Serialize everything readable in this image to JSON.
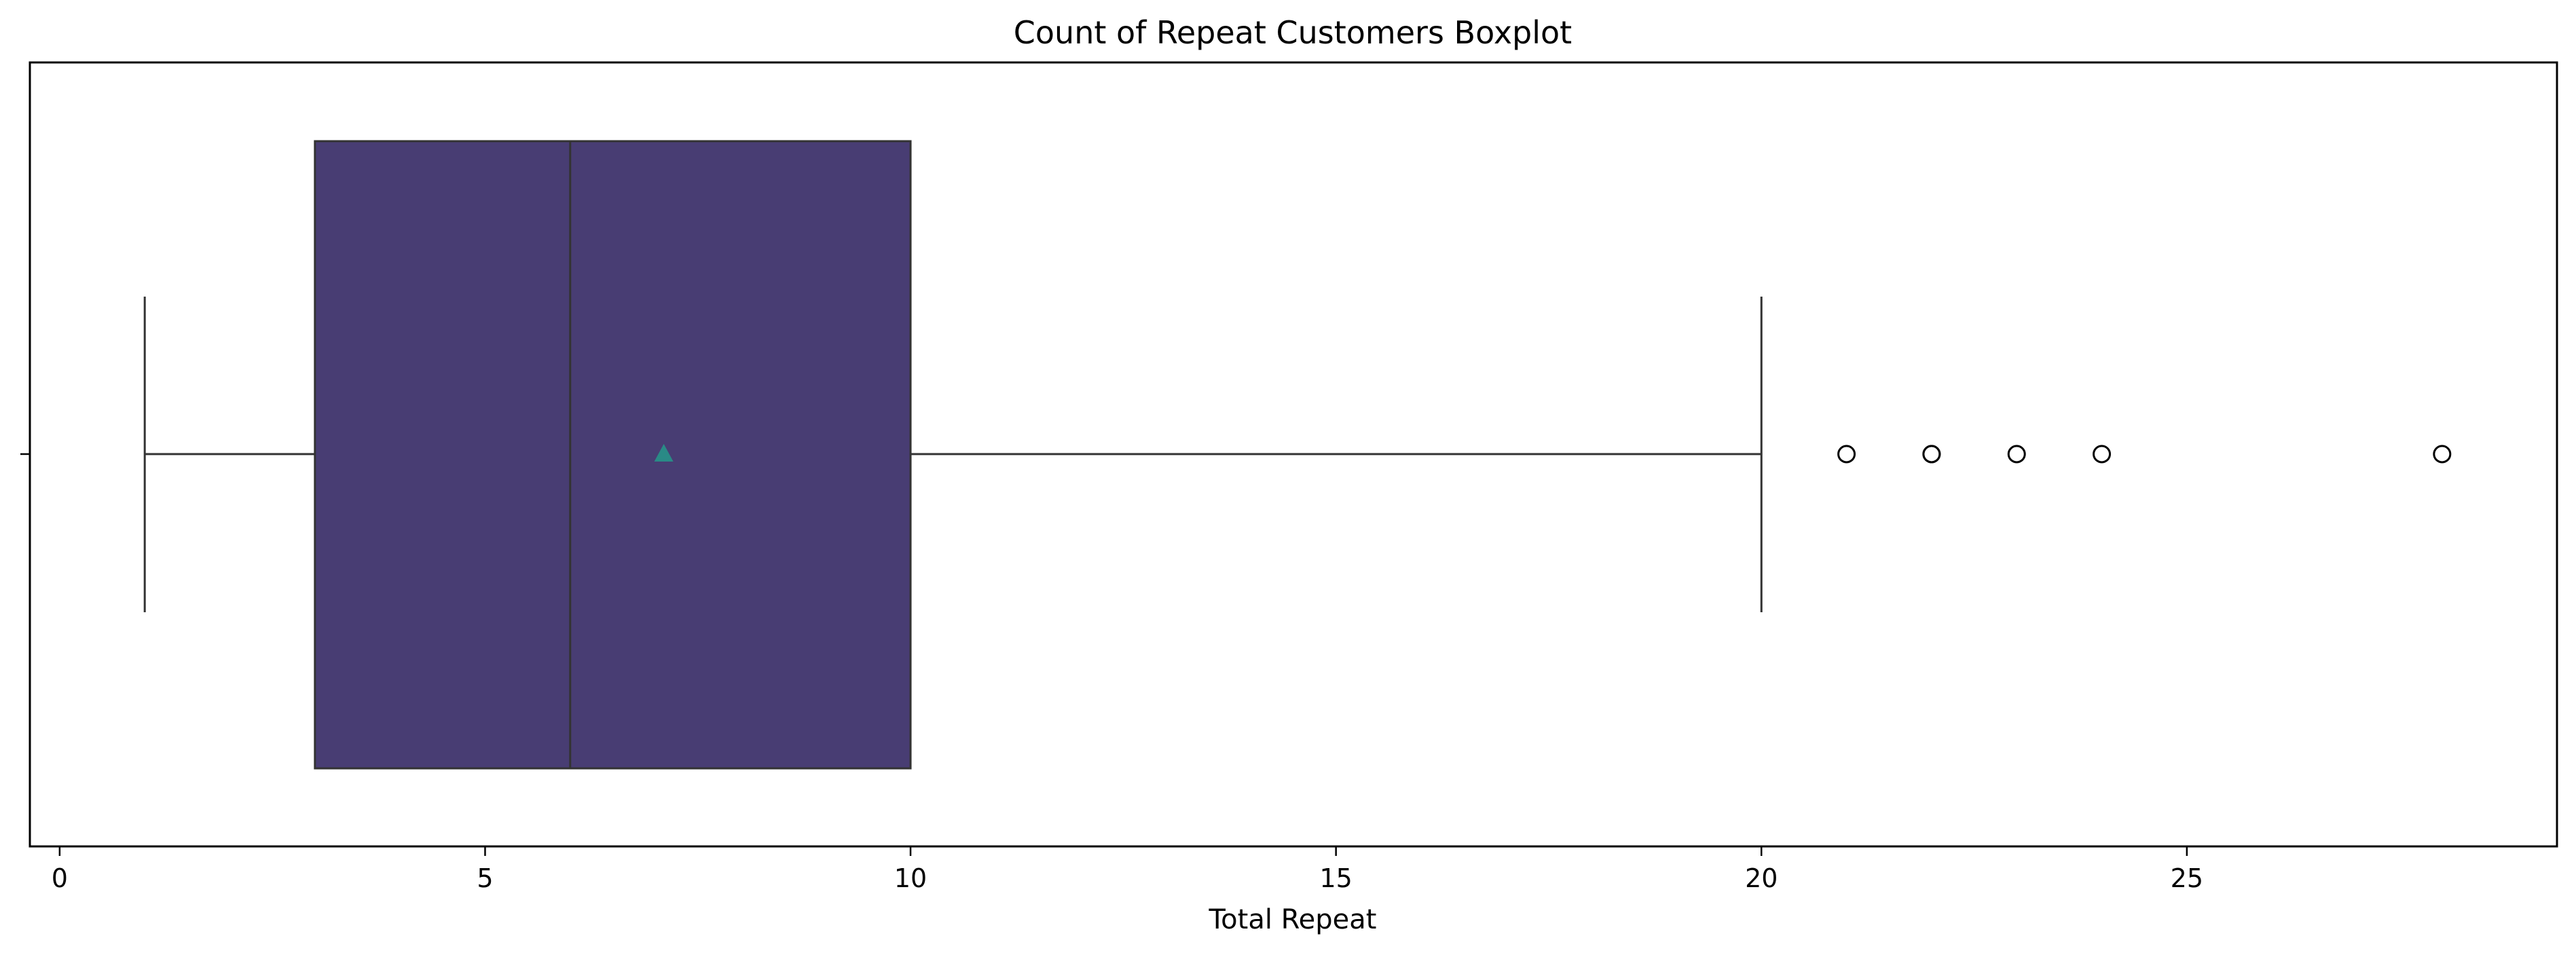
{
  "chart_data": {
    "type": "boxplot",
    "title": "Count of Repeat Customers Boxplot",
    "xlabel": "Total Repeat",
    "ylabel": "",
    "xlim": [
      -0.35,
      29.35
    ],
    "xticks": [
      0,
      5,
      10,
      15,
      20,
      25
    ],
    "grid": false,
    "series": [
      {
        "whisker_low": 1,
        "q1": 3,
        "median": 6,
        "q3": 10,
        "whisker_high": 20,
        "mean": 7.1,
        "outliers": [
          21,
          22,
          22,
          23,
          24,
          28
        ]
      }
    ],
    "colors": {
      "box_fill": "#483d73",
      "box_edge": "#333333",
      "mean_marker": "#2a8a86",
      "line": "#333333"
    }
  }
}
